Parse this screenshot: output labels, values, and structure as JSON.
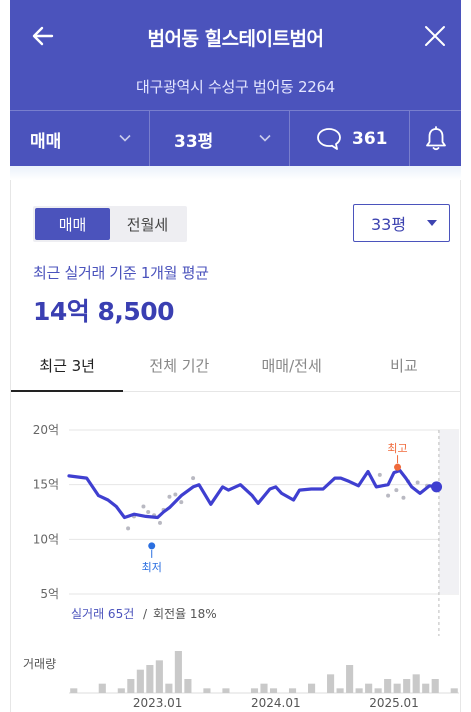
{
  "header": {
    "title": "범어동 힐스테이트범어",
    "address": "대구광역시 수성구 범어동 2264",
    "trade_type": "매매",
    "area": "33평",
    "comment_count": "361",
    "colors": {
      "primary": "#4b53bc"
    }
  },
  "icons": {
    "back": "arrow-left-icon",
    "close": "close-icon",
    "dropdown": "chevron-down-icon",
    "comment": "speech-bubble-icon",
    "bell": "bell-icon"
  },
  "filters": {
    "segment": [
      "매매",
      "전월세"
    ],
    "segment_active": "매매",
    "area_select": "33평"
  },
  "summary": {
    "label": "최근 실거래 기준 1개월 평균",
    "value": "14억 8,500"
  },
  "tabs": [
    "최근 3년",
    "전체 기간",
    "매매/전세",
    "비교"
  ],
  "active_tab": "최근 3년",
  "chart_data": {
    "type": "line",
    "y_ticks": [
      "20억",
      "15억",
      "10억",
      "5억"
    ],
    "ylim": [
      5,
      20
    ],
    "x_ticks": [
      "2023.01",
      "2024.01",
      "2025.01"
    ],
    "xlim": [
      2022.25,
      2025.55
    ],
    "x_ticks_values": [
      2023.0,
      2024.0,
      2025.0
    ],
    "series": [
      {
        "x": [
          2022.25,
          2022.4,
          2022.5,
          2022.58,
          2022.65,
          2022.72,
          2022.8,
          2022.9,
          2023.0,
          2023.05,
          2023.1,
          2023.2,
          2023.3,
          2023.35,
          2023.45,
          2023.55,
          2023.6,
          2023.7,
          2023.8,
          2023.85,
          2023.95,
          2024.0,
          2024.05,
          2024.15,
          2024.2,
          2024.3,
          2024.4,
          2024.5,
          2024.55,
          2024.62,
          2024.7,
          2024.78,
          2024.85,
          2024.95,
          2025.0,
          2025.05,
          2025.1,
          2025.15,
          2025.22,
          2025.3,
          2025.36
        ],
        "y": [
          15.8,
          15.6,
          14.0,
          13.6,
          13.0,
          12.0,
          12.3,
          12.1,
          12.0,
          12.5,
          12.9,
          14.0,
          14.8,
          15.0,
          13.2,
          14.8,
          14.5,
          15.0,
          14.0,
          13.3,
          14.6,
          14.8,
          14.2,
          13.6,
          14.5,
          14.6,
          14.6,
          15.6,
          15.6,
          15.3,
          14.9,
          16.2,
          14.8,
          15.0,
          16.1,
          16.3,
          15.6,
          14.8,
          14.2,
          14.9,
          14.8
        ]
      }
    ],
    "scatter": {
      "x": [
        2022.75,
        2022.8,
        2022.88,
        2022.92,
        2022.97,
        2023.02,
        2023.05,
        2023.1,
        2023.15,
        2023.2,
        2023.3,
        2024.88,
        2024.95,
        2025.02,
        2025.08,
        2025.12,
        2025.2,
        2025.28
      ],
      "y": [
        11.0,
        12.1,
        13.0,
        12.5,
        12.2,
        11.5,
        12.7,
        13.9,
        14.1,
        13.4,
        15.6,
        15.9,
        14.0,
        14.5,
        13.8,
        15.3,
        15.2,
        14.9
      ]
    },
    "high": {
      "label": "최고",
      "x": 2025.03,
      "y": 16.6
    },
    "low": {
      "label": "최저",
      "x": 2022.95,
      "y": 9.4
    },
    "forecast_from": 2025.38,
    "volume": {
      "label": "거래량",
      "values": [
        1,
        0,
        0,
        2,
        0,
        1,
        3,
        5,
        6,
        7,
        2,
        9,
        3,
        0,
        1,
        0,
        1,
        0,
        0,
        1,
        2,
        1,
        0,
        1,
        0,
        2,
        0,
        4,
        1,
        6,
        1,
        2,
        1,
        3,
        2,
        3,
        4,
        2,
        3,
        0,
        1
      ]
    },
    "stats": {
      "count_text": "실거래 65건",
      "separator": " / ",
      "turnover_text": "회전율 18%"
    }
  }
}
